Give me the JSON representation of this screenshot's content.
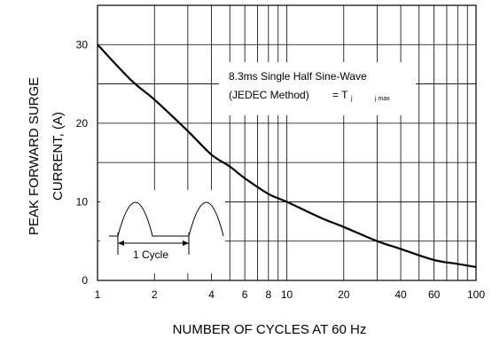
{
  "chart_data": {
    "type": "line",
    "xlabel": "NUMBER OF CYCLES AT 60 Hz",
    "ylabel_line1": "PEAK FORWARD SURGE",
    "ylabel_line2": "CURRENT, (A)",
    "x_scale": "log",
    "xlim": [
      1,
      100
    ],
    "ylim": [
      0,
      35
    ],
    "x_ticks": [
      {
        "value": 1,
        "label": "1"
      },
      {
        "value": 2,
        "label": "2"
      },
      {
        "value": 4,
        "label": "4"
      },
      {
        "value": 6,
        "label": "6"
      },
      {
        "value": 8,
        "label": "8"
      },
      {
        "value": 10,
        "label": "10"
      },
      {
        "value": 20,
        "label": "20"
      },
      {
        "value": 40,
        "label": "40"
      },
      {
        "value": 60,
        "label": "60"
      },
      {
        "value": 100,
        "label": "100"
      }
    ],
    "y_ticks": [
      {
        "value": 0,
        "label": "0"
      },
      {
        "value": 10,
        "label": "10"
      },
      {
        "value": 20,
        "label": "20"
      },
      {
        "value": 30,
        "label": "30"
      }
    ],
    "grid": true,
    "series": [
      {
        "x": [
          1,
          1.5,
          2,
          3,
          4,
          5,
          6,
          8,
          10,
          15,
          20,
          30,
          40,
          60,
          80,
          100
        ],
        "y": [
          30,
          25.5,
          23,
          19,
          16,
          14.5,
          13,
          11,
          10,
          8,
          6.8,
          5,
          4,
          2.6,
          2.1,
          1.7
        ]
      }
    ],
    "annotation": {
      "line1": "8.3ms Single Half Sine-Wave",
      "line2": "(JEDEC Method)",
      "line2_eq": "= T",
      "line2_sub": "j",
      "line2_subsub": "j max"
    },
    "inset_label": "1 Cycle"
  }
}
